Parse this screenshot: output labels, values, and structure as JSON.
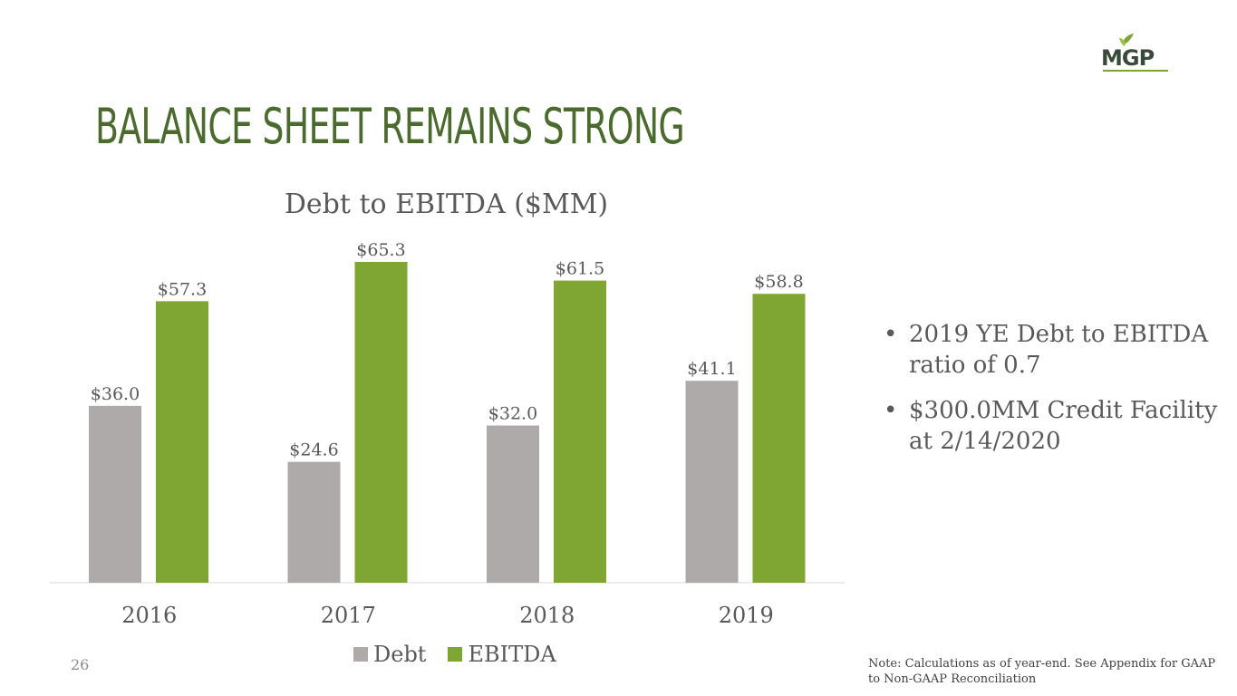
{
  "logo": {
    "text": "MGP"
  },
  "title": "BALANCE SHEET REMAINS STRONG",
  "chart_data": {
    "type": "bar",
    "title": "Debt to EBITDA ($MM)",
    "categories": [
      "2016",
      "2017",
      "2018",
      "2019"
    ],
    "series": [
      {
        "name": "Debt",
        "values": [
          36.0,
          24.6,
          32.0,
          41.1
        ],
        "labels": [
          "$36.0",
          "$24.6",
          "$32.0",
          "$41.1"
        ],
        "color": "#aeaaaa"
      },
      {
        "name": "EBITDA",
        "values": [
          57.3,
          65.3,
          61.5,
          58.8
        ],
        "labels": [
          "$57.3",
          "$65.3",
          "$61.5",
          "$58.8"
        ],
        "color": "#7fa532"
      }
    ],
    "ylim": [
      0,
      65.3
    ],
    "grid": false,
    "legend": "bottom"
  },
  "bullets": [
    "2019 YE Debt to EBITDA ratio of 0.7",
    "$300.0MM Credit Facility at 2/14/2020"
  ],
  "page_number": "26",
  "note": "Note: Calculations as of year-end. See Appendix for GAAP to Non-GAAP Reconciliation"
}
